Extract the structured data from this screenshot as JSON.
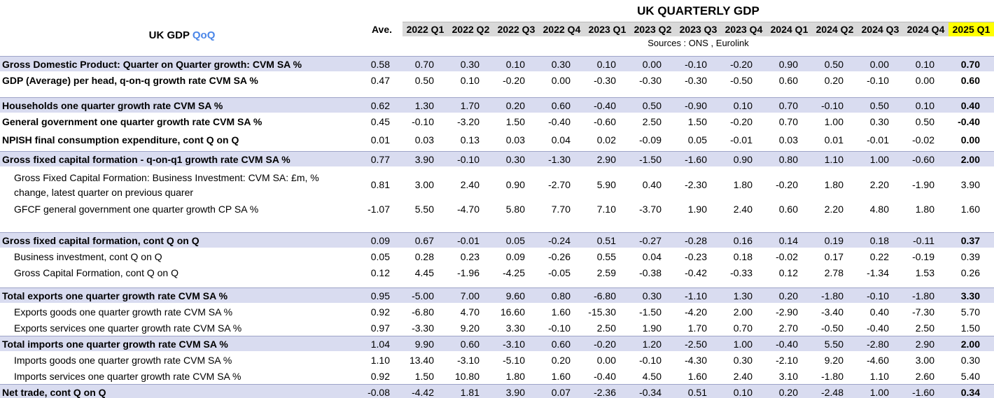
{
  "title": {
    "text": "UK GDP",
    "highlight": "QoQ"
  },
  "header": {
    "banner": "UK QUARTERLY GDP",
    "ave": "Ave.",
    "quarters": [
      "2022 Q1",
      "2022 Q2",
      "2022 Q3",
      "2022 Q4",
      "2023 Q1",
      "2023 Q2",
      "2023 Q3",
      "2023 Q4",
      "2024 Q1",
      "2024 Q2",
      "2024 Q3",
      "2024 Q4",
      "2025 Q1"
    ],
    "sources": "Sources : ONS , Eurolink"
  },
  "rows": [
    {
      "label": [
        "Gross Domestic Product: Quarter on Quarter growth: CVM SA %"
      ],
      "values": [
        "0.58",
        "0.70",
        "0.30",
        "0.10",
        "0.30",
        "0.10",
        "0.00",
        "-0.10",
        "-0.20",
        "0.90",
        "0.50",
        "0.00",
        "0.10",
        "0.70"
      ]
    },
    {
      "label": [
        "GDP (Average) per head, q-on-q growth rate CVM SA %"
      ],
      "values": [
        "0.47",
        "0.50",
        "0.10",
        "-0.20",
        "0.00",
        "-0.30",
        "-0.30",
        "-0.30",
        "-0.50",
        "0.60",
        "0.20",
        "-0.10",
        "0.00",
        "0.60"
      ]
    },
    {
      "label": [
        "Households one quarter growth rate CVM SA %"
      ],
      "values": [
        "0.62",
        "1.30",
        "1.70",
        "0.20",
        "0.60",
        "-0.40",
        "0.50",
        "-0.90",
        "0.10",
        "0.70",
        "-0.10",
        "0.50",
        "0.10",
        "0.40"
      ]
    },
    {
      "label": [
        "General government one quarter growth rate CVM SA %"
      ],
      "values": [
        "0.45",
        "-0.10",
        "-3.20",
        "1.50",
        "-0.40",
        "-0.60",
        "2.50",
        "1.50",
        "-0.20",
        "0.70",
        "1.00",
        "0.30",
        "0.50",
        "-0.40"
      ]
    },
    {
      "label": [
        "NPISH final consumption expenditure, cont Q on Q"
      ],
      "values": [
        "0.01",
        "0.03",
        "0.13",
        "0.03",
        "0.04",
        "0.02",
        "-0.09",
        "0.05",
        "-0.01",
        "0.03",
        "0.01",
        "-0.01",
        "-0.02",
        "0.00"
      ]
    },
    {
      "label": [
        "Gross fixed capital formation - q-on-q1 growth rate CVM SA %"
      ],
      "values": [
        "0.77",
        "3.90",
        "-0.10",
        "0.30",
        "-1.30",
        "2.90",
        "-1.50",
        "-1.60",
        "0.90",
        "0.80",
        "1.10",
        "1.00",
        "-0.60",
        "2.00"
      ]
    },
    {
      "label": [
        "Gross Fixed Capital Formation: Business Investment: CVM SA: £m, %",
        "change, latest quarter on previous quarer"
      ],
      "values": [
        "0.81",
        "3.00",
        "2.40",
        "0.90",
        "-2.70",
        "5.90",
        "0.40",
        "-2.30",
        "1.80",
        "-0.20",
        "1.80",
        "2.20",
        "-1.90",
        "3.90"
      ]
    },
    {
      "label": [
        "GFCF general government one quarter growth CP SA %"
      ],
      "values": [
        "-1.07",
        "5.50",
        "-4.70",
        "5.80",
        "7.70",
        "7.10",
        "-3.70",
        "1.90",
        "2.40",
        "0.60",
        "2.20",
        "4.80",
        "1.80",
        "1.60"
      ]
    },
    {
      "label": [
        "Gross fixed capital formation, cont Q on Q"
      ],
      "values": [
        "0.09",
        "0.67",
        "-0.01",
        "0.05",
        "-0.24",
        "0.51",
        "-0.27",
        "-0.28",
        "0.16",
        "0.14",
        "0.19",
        "0.18",
        "-0.11",
        "0.37"
      ]
    },
    {
      "label": [
        "Business investment, cont Q on Q"
      ],
      "values": [
        "0.05",
        "0.28",
        "0.23",
        "0.09",
        "-0.26",
        "0.55",
        "0.04",
        "-0.23",
        "0.18",
        "-0.02",
        "0.17",
        "0.22",
        "-0.19",
        "0.39"
      ]
    },
    {
      "label": [
        "Gross Capital Formation, cont Q on Q"
      ],
      "values": [
        "0.12",
        "4.45",
        "-1.96",
        "-4.25",
        "-0.05",
        "2.59",
        "-0.38",
        "-0.42",
        "-0.33",
        "0.12",
        "2.78",
        "-1.34",
        "1.53",
        "0.26"
      ]
    },
    {
      "label": [
        "Total exports one quarter growth rate CVM SA %"
      ],
      "values": [
        "0.95",
        "-5.00",
        "7.00",
        "9.60",
        "0.80",
        "-6.80",
        "0.30",
        "-1.10",
        "1.30",
        "0.20",
        "-1.80",
        "-0.10",
        "-1.80",
        "3.30"
      ]
    },
    {
      "label": [
        "Exports goods one quarter growth rate CVM SA %"
      ],
      "values": [
        "0.92",
        "-6.80",
        "4.70",
        "16.60",
        "1.60",
        "-15.30",
        "-1.50",
        "-4.20",
        "2.00",
        "-2.90",
        "-3.40",
        "0.40",
        "-7.30",
        "5.70"
      ]
    },
    {
      "label": [
        "Exports services one quarter growth rate CVM SA %"
      ],
      "values": [
        "0.97",
        "-3.30",
        "9.20",
        "3.30",
        "-0.10",
        "2.50",
        "1.90",
        "1.70",
        "0.70",
        "2.70",
        "-0.50",
        "-0.40",
        "2.50",
        "1.50"
      ]
    },
    {
      "label": [
        "Total imports one quarter growth rate CVM SA %"
      ],
      "values": [
        "1.04",
        "9.90",
        "0.60",
        "-3.10",
        "0.60",
        "-0.20",
        "1.20",
        "-2.50",
        "1.00",
        "-0.40",
        "5.50",
        "-2.80",
        "2.90",
        "2.00"
      ]
    },
    {
      "label": [
        "Imports goods one quarter growth rate CVM SA %"
      ],
      "values": [
        "1.10",
        "13.40",
        "-3.10",
        "-5.10",
        "0.20",
        "0.00",
        "-0.10",
        "-4.30",
        "0.30",
        "-2.10",
        "9.20",
        "-4.60",
        "3.00",
        "0.30"
      ]
    },
    {
      "label": [
        "Imports services one quarter growth rate CVM SA %"
      ],
      "values": [
        "0.92",
        "1.50",
        "10.80",
        "1.80",
        "1.60",
        "-0.40",
        "4.50",
        "1.60",
        "2.40",
        "3.10",
        "-1.80",
        "1.10",
        "2.60",
        "5.40"
      ]
    },
    {
      "label": [
        "Net trade, cont Q on Q"
      ],
      "values": [
        "-0.08",
        "-4.42",
        "1.81",
        "3.90",
        "0.07",
        "-2.36",
        "-0.34",
        "0.51",
        "0.10",
        "0.20",
        "-2.48",
        "1.00",
        "-1.60",
        "0.34"
      ]
    }
  ]
}
